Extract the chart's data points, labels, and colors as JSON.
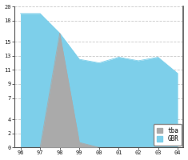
{
  "years_x": [
    0,
    1,
    2,
    3,
    4,
    5,
    6,
    7,
    8
  ],
  "xtick_labels": [
    "96",
    "97",
    "98",
    "99",
    "00",
    "01",
    "02",
    "03",
    "04"
  ],
  "gbr": [
    19.0,
    19.0,
    16.2,
    12.5,
    12.0,
    12.8,
    12.3,
    12.8,
    10.5
  ],
  "tba": [
    0.0,
    0.0,
    16.2,
    0.7,
    0.0,
    0.0,
    0.0,
    0.0,
    0.0
  ],
  "gbr_color": "#7dcfea",
  "tba_color": "#aaaaaa",
  "ylim": [
    0,
    20
  ],
  "yticks": [
    0,
    2,
    4,
    7,
    9,
    11,
    13,
    15,
    18,
    20
  ],
  "background_color": "#ffffff",
  "grid_color": "#c8c8c8",
  "plot_bg": "#e8e8e8"
}
